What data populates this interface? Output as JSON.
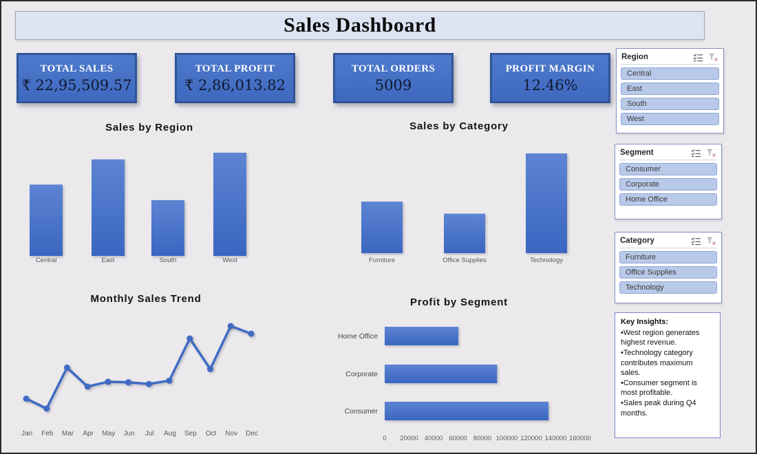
{
  "title": "Sales Dashboard",
  "kpis": [
    {
      "label": "TOTAL SALES",
      "value": "₹ 22,95,509.57"
    },
    {
      "label": "TOTAL PROFIT",
      "value": "₹ 2,86,013.82"
    },
    {
      "label": "TOTAL ORDERS",
      "value": "5009"
    },
    {
      "label": "PROFIT MARGIN",
      "value": "12.46%"
    }
  ],
  "slicers": [
    {
      "title": "Region",
      "icons": [
        "multi-select-icon",
        "clear-filter-icon"
      ],
      "items": [
        "Central",
        "East",
        "South",
        "West"
      ]
    },
    {
      "title": "Segment",
      "icons": [
        "multi-select-icon",
        "clear-filter-icon"
      ],
      "items": [
        "Consumer",
        "Corporate",
        "Home Office"
      ]
    },
    {
      "title": "Category",
      "icons": [
        "multi-select-icon",
        "clear-filter-icon"
      ],
      "items": [
        "Furniture",
        "Office Supplies",
        "Technology"
      ]
    }
  ],
  "insights": {
    "title": "Key Insights:",
    "bullets": [
      "West region generates highest revenue.",
      "Technology category contributes maximum sales.",
      "Consumer segment is most profitable.",
      "Sales peak during Q4 months."
    ]
  },
  "colors": {
    "accent": "#4472C4",
    "accent_dark": "#2F5597",
    "bar_gradient_top": "#5D84D3",
    "bar_gradient_bottom": "#3A66C0",
    "line": "#3E6AC4",
    "axis_text": "#595959",
    "title_bar_bg": "#DCE3F2",
    "slicer_item_bg": "#B9C9E9",
    "background": "#EBE9EC"
  },
  "chart_data": [
    {
      "type": "bar",
      "title": "Sales by Region",
      "categories": [
        "Central",
        "East",
        "South",
        "West"
      ],
      "values": [
        501000,
        678000,
        392000,
        725000
      ],
      "xlabel": "",
      "ylabel": "",
      "ylim": [
        0,
        725000
      ],
      "grid": false,
      "legend": "none"
    },
    {
      "type": "bar",
      "title": "Sales by Category",
      "categories": [
        "Furniture",
        "Office Supplies",
        "Technology"
      ],
      "values": [
        620000,
        475000,
        1200000
      ],
      "xlabel": "",
      "ylabel": "",
      "ylim": [
        0,
        1200000
      ],
      "grid": false,
      "legend": "none"
    },
    {
      "type": "line",
      "title": "Monthly Sales Trend",
      "categories": [
        "Jan",
        "Feb",
        "Mar",
        "Apr",
        "May",
        "Jun",
        "Jul",
        "Aug",
        "Sep",
        "Oct",
        "Nov",
        "Dec"
      ],
      "values": [
        95000,
        60000,
        205000,
        138000,
        155000,
        153000,
        147000,
        159000,
        308000,
        200000,
        352000,
        325000
      ],
      "xlabel": "",
      "ylabel": "",
      "ylim": [
        60000,
        352000
      ],
      "grid": false,
      "legend": "none",
      "markers": true
    },
    {
      "type": "bar-horizontal",
      "title": "Profit by Segment",
      "categories": [
        "Home Office",
        "Corporate",
        "Consumer"
      ],
      "values": [
        60300,
        92000,
        134100
      ],
      "xticks": [
        "0",
        "20000",
        "40000",
        "60000",
        "80000",
        "100000",
        "120000",
        "140000",
        "160000"
      ],
      "xlim": [
        0,
        160000
      ],
      "xlabel": "",
      "ylabel": "",
      "grid": false,
      "legend": "none"
    }
  ]
}
